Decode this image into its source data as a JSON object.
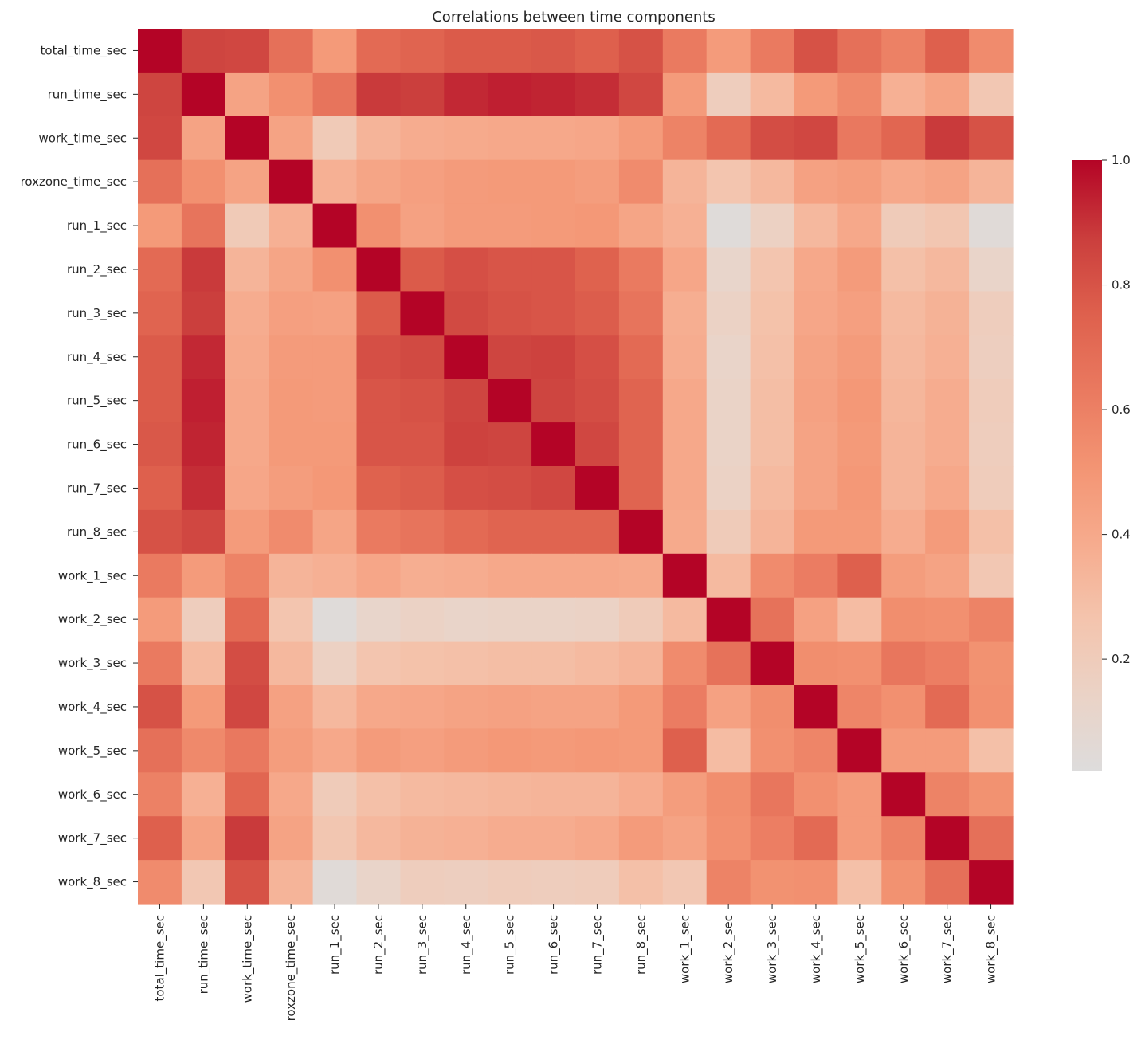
{
  "chart_data": {
    "type": "heatmap",
    "title": "Correlations between time components",
    "labels": [
      "total_time_sec",
      "run_time_sec",
      "work_time_sec",
      "roxzone_time_sec",
      "run_1_sec",
      "run_2_sec",
      "run_3_sec",
      "run_4_sec",
      "run_5_sec",
      "run_6_sec",
      "run_7_sec",
      "run_8_sec",
      "work_1_sec",
      "work_2_sec",
      "work_3_sec",
      "work_4_sec",
      "work_5_sec",
      "work_6_sec",
      "work_7_sec",
      "work_8_sec"
    ],
    "values": [
      [
        1.0,
        0.85,
        0.84,
        0.67,
        0.47,
        0.7,
        0.73,
        0.77,
        0.77,
        0.78,
        0.75,
        0.8,
        0.62,
        0.46,
        0.62,
        0.8,
        0.67,
        0.59,
        0.75,
        0.54
      ],
      [
        0.85,
        1.0,
        0.42,
        0.52,
        0.65,
        0.88,
        0.87,
        0.92,
        0.94,
        0.93,
        0.91,
        0.84,
        0.46,
        0.17,
        0.3,
        0.47,
        0.55,
        0.35,
        0.42,
        0.22
      ],
      [
        0.84,
        0.42,
        1.0,
        0.42,
        0.2,
        0.33,
        0.37,
        0.38,
        0.39,
        0.39,
        0.4,
        0.46,
        0.58,
        0.7,
        0.82,
        0.84,
        0.63,
        0.72,
        0.88,
        0.8
      ],
      [
        0.67,
        0.52,
        0.42,
        1.0,
        0.35,
        0.41,
        0.44,
        0.46,
        0.47,
        0.47,
        0.45,
        0.54,
        0.33,
        0.24,
        0.31,
        0.43,
        0.45,
        0.39,
        0.42,
        0.33
      ],
      [
        0.47,
        0.65,
        0.2,
        0.35,
        1.0,
        0.52,
        0.43,
        0.46,
        0.46,
        0.47,
        0.48,
        0.41,
        0.35,
        0.02,
        0.14,
        0.31,
        0.39,
        0.19,
        0.23,
        0.03
      ],
      [
        0.7,
        0.88,
        0.33,
        0.41,
        0.52,
        1.0,
        0.77,
        0.81,
        0.79,
        0.79,
        0.74,
        0.62,
        0.4,
        0.1,
        0.24,
        0.39,
        0.46,
        0.27,
        0.31,
        0.11
      ],
      [
        0.73,
        0.87,
        0.37,
        0.44,
        0.43,
        0.77,
        1.0,
        0.83,
        0.8,
        0.79,
        0.76,
        0.65,
        0.36,
        0.13,
        0.26,
        0.4,
        0.44,
        0.3,
        0.34,
        0.17
      ],
      [
        0.77,
        0.92,
        0.38,
        0.46,
        0.46,
        0.81,
        0.83,
        1.0,
        0.85,
        0.86,
        0.81,
        0.7,
        0.37,
        0.11,
        0.27,
        0.42,
        0.46,
        0.31,
        0.35,
        0.16
      ],
      [
        0.77,
        0.94,
        0.39,
        0.47,
        0.46,
        0.79,
        0.8,
        0.85,
        1.0,
        0.85,
        0.82,
        0.73,
        0.39,
        0.12,
        0.28,
        0.43,
        0.48,
        0.32,
        0.37,
        0.18
      ],
      [
        0.78,
        0.93,
        0.39,
        0.47,
        0.47,
        0.79,
        0.79,
        0.86,
        0.85,
        1.0,
        0.84,
        0.73,
        0.39,
        0.12,
        0.28,
        0.42,
        0.47,
        0.33,
        0.37,
        0.17
      ],
      [
        0.75,
        0.91,
        0.4,
        0.45,
        0.48,
        0.74,
        0.76,
        0.81,
        0.82,
        0.84,
        1.0,
        0.73,
        0.39,
        0.13,
        0.3,
        0.42,
        0.48,
        0.33,
        0.39,
        0.18
      ],
      [
        0.8,
        0.84,
        0.46,
        0.54,
        0.41,
        0.62,
        0.65,
        0.7,
        0.73,
        0.73,
        0.73,
        1.0,
        0.38,
        0.19,
        0.33,
        0.47,
        0.47,
        0.37,
        0.46,
        0.27
      ],
      [
        0.62,
        0.46,
        0.58,
        0.33,
        0.35,
        0.4,
        0.36,
        0.37,
        0.39,
        0.39,
        0.39,
        0.38,
        1.0,
        0.3,
        0.54,
        0.61,
        0.75,
        0.45,
        0.42,
        0.22
      ],
      [
        0.46,
        0.17,
        0.7,
        0.24,
        0.02,
        0.1,
        0.13,
        0.11,
        0.12,
        0.12,
        0.13,
        0.19,
        0.3,
        1.0,
        0.66,
        0.43,
        0.29,
        0.53,
        0.52,
        0.58
      ],
      [
        0.62,
        0.3,
        0.82,
        0.31,
        0.14,
        0.24,
        0.26,
        0.27,
        0.28,
        0.28,
        0.3,
        0.33,
        0.54,
        0.66,
        1.0,
        0.53,
        0.52,
        0.64,
        0.6,
        0.51
      ],
      [
        0.8,
        0.47,
        0.84,
        0.43,
        0.31,
        0.39,
        0.4,
        0.42,
        0.43,
        0.42,
        0.42,
        0.47,
        0.61,
        0.43,
        0.53,
        1.0,
        0.57,
        0.52,
        0.7,
        0.52
      ],
      [
        0.67,
        0.55,
        0.63,
        0.45,
        0.39,
        0.46,
        0.44,
        0.46,
        0.48,
        0.47,
        0.48,
        0.47,
        0.75,
        0.29,
        0.52,
        0.57,
        1.0,
        0.46,
        0.46,
        0.27
      ],
      [
        0.59,
        0.35,
        0.72,
        0.39,
        0.19,
        0.27,
        0.3,
        0.31,
        0.32,
        0.33,
        0.33,
        0.37,
        0.45,
        0.53,
        0.64,
        0.52,
        0.46,
        1.0,
        0.58,
        0.51
      ],
      [
        0.75,
        0.42,
        0.88,
        0.42,
        0.23,
        0.31,
        0.34,
        0.35,
        0.37,
        0.37,
        0.39,
        0.46,
        0.42,
        0.52,
        0.6,
        0.7,
        0.46,
        0.58,
        1.0,
        0.67
      ],
      [
        0.54,
        0.22,
        0.8,
        0.33,
        0.03,
        0.11,
        0.17,
        0.16,
        0.18,
        0.17,
        0.18,
        0.27,
        0.22,
        0.58,
        0.51,
        0.52,
        0.27,
        0.51,
        0.67,
        1.0
      ]
    ],
    "colormap": "coolwarm",
    "vmin": 0.0,
    "vmax": 1.0,
    "colorbar_ticks": [
      "0.2",
      "0.4",
      "0.6",
      "0.8",
      "1.0"
    ],
    "legend": "right colorbar",
    "grid": false
  }
}
